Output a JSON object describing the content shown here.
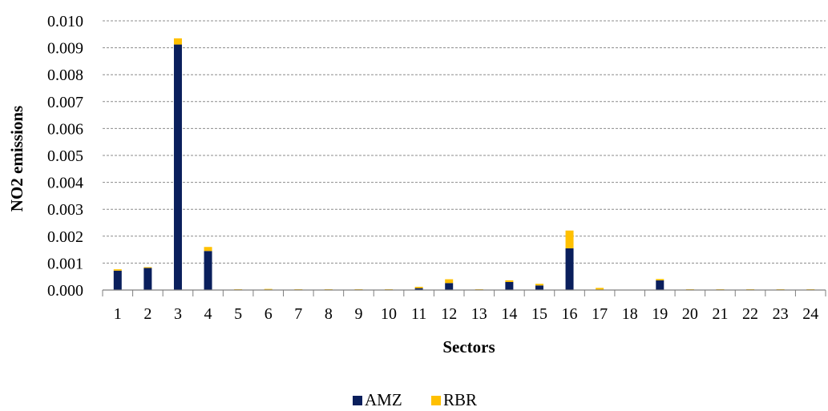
{
  "chart_data": {
    "type": "bar",
    "stacked": true,
    "categories": [
      "1",
      "2",
      "3",
      "4",
      "5",
      "6",
      "7",
      "8",
      "9",
      "10",
      "11",
      "12",
      "13",
      "14",
      "15",
      "16",
      "17",
      "18",
      "19",
      "20",
      "21",
      "22",
      "23",
      "24"
    ],
    "series": [
      {
        "name": "AMZ",
        "color": "#0a1f5c",
        "values": [
          0.00072,
          0.00082,
          0.00912,
          0.00145,
          0,
          0,
          0,
          0,
          0,
          0,
          7e-05,
          0.00026,
          0,
          0.0003,
          0.00017,
          0.00155,
          0,
          0,
          0.00036,
          0,
          0,
          0,
          0,
          0
        ]
      },
      {
        "name": "RBR",
        "color": "#ffc000",
        "values": [
          5e-05,
          3e-05,
          0.00023,
          0.00015,
          3e-05,
          4e-05,
          3e-05,
          3e-05,
          3e-05,
          3e-05,
          5e-05,
          0.00014,
          3e-05,
          6e-05,
          6e-05,
          0.00066,
          8e-05,
          0,
          5e-05,
          3e-05,
          3e-05,
          3e-05,
          3e-05,
          3e-05
        ]
      }
    ],
    "title": "",
    "xlabel": "Sectors",
    "ylabel": "NO2 emissions",
    "ylim": [
      0,
      0.01
    ],
    "yticks": [
      "0.000",
      "0.001",
      "0.002",
      "0.003",
      "0.004",
      "0.005",
      "0.006",
      "0.007",
      "0.008",
      "0.009",
      "0.010"
    ],
    "grid": "horizontal-dashed",
    "legend": "bottom-center"
  }
}
